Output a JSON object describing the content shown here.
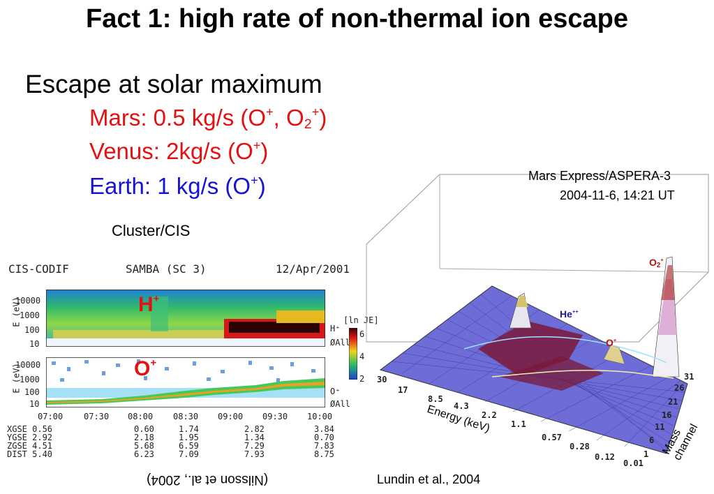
{
  "title": "Fact 1: high rate of non-thermal ion escape",
  "subtitle": "Escape at solar maximum",
  "rates": {
    "mars": {
      "prefix": "Mars: 0.5 kg/s (O",
      "sep": ", O",
      "sub": "2",
      "end": ")"
    },
    "venus": {
      "prefix": "Venus: 2kg/s (O",
      "end": ")"
    },
    "earth": {
      "prefix": "Earth: 1 kg/s (O",
      "end": ")"
    },
    "plus": "+"
  },
  "cluster_label": "Cluster/CIS",
  "cis_plot": {
    "header_left": "CIS-CODIF",
    "header_mid": "SAMBA (SC 3)",
    "header_date": "12/Apr/2001",
    "panel1_ion": "H",
    "panel2_ion": "O",
    "yticks": [
      "10000",
      "1000",
      "100",
      "10"
    ],
    "yticks2": [
      "10000",
      "1000",
      "100",
      "10"
    ],
    "ylabel": "E (eV)",
    "right1": [
      "H⁺",
      "ØAll"
    ],
    "right2": [
      "O⁺",
      "ØAll"
    ],
    "colorbar_label": "[ln JE]",
    "colorbar_ticks": [
      "6",
      "4",
      "2"
    ],
    "times": [
      "07:00",
      "07:30",
      "08:00",
      "08:30",
      "09:00",
      "09:30",
      "10:00"
    ],
    "coord_labels": [
      "XGSE 0.56",
      "YGSE 2.92",
      "ZGSE 4.51",
      "DIST 5.40"
    ],
    "coord_cols": [
      [
        "0.60",
        "2.18",
        "5.68",
        "6.23"
      ],
      [
        "1.74",
        "1.95",
        "6.59",
        "7.09"
      ],
      [
        "2.82",
        "1.34",
        "7.29",
        "7.93"
      ],
      [
        "3.84",
        "0.70",
        "7.83",
        "8.75"
      ]
    ]
  },
  "nilsson_credit": "(Nilsson et al., 2004)",
  "mex_plot": {
    "title_line1": "Mars Express/ASPERA-3",
    "title_line2": "2004-11-6,  14:21 UT",
    "peak_o2": "O",
    "peak_he": "He",
    "peak_he_sup": "++",
    "peak_o": "O",
    "energy_ticks": [
      "30",
      "17",
      "8.5",
      "4.3",
      "2.2",
      "1.1",
      "0.57",
      "0.28",
      "0.12",
      "0.01"
    ],
    "energy_label": "Energy (keV)",
    "mass_ticks": [
      "31",
      "26",
      "21",
      "16",
      "11",
      "6",
      "1"
    ],
    "mass_label": "Mass channel"
  },
  "lundin_credit": "Lundin et al., 2004",
  "colors": {
    "red": "#e31212",
    "blue": "#1414d2"
  }
}
